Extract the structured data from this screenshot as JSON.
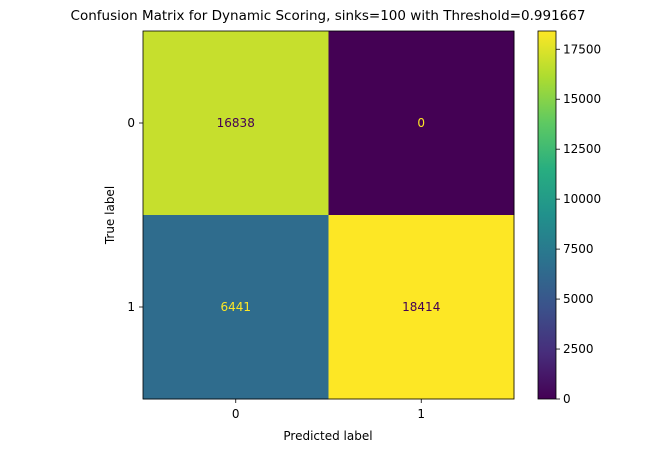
{
  "chart_data": {
    "type": "heatmap",
    "title": "Confusion Matrix for Dynamic Scoring, sinks=100 with Threshold=0.991667",
    "xlabel": "Predicted label",
    "ylabel": "True label",
    "x_categories": [
      "0",
      "1"
    ],
    "y_categories": [
      "0",
      "1"
    ],
    "values": [
      [
        16838,
        0
      ],
      [
        6441,
        18414
      ]
    ],
    "colormap": "viridis",
    "colorbar": {
      "min": 0,
      "max": 18414,
      "ticks": [
        0,
        2500,
        5000,
        7500,
        10000,
        12500,
        15000,
        17500
      ]
    },
    "cell_text_colors": {
      "on_dark": "#fde725",
      "on_light": "#440154"
    }
  }
}
